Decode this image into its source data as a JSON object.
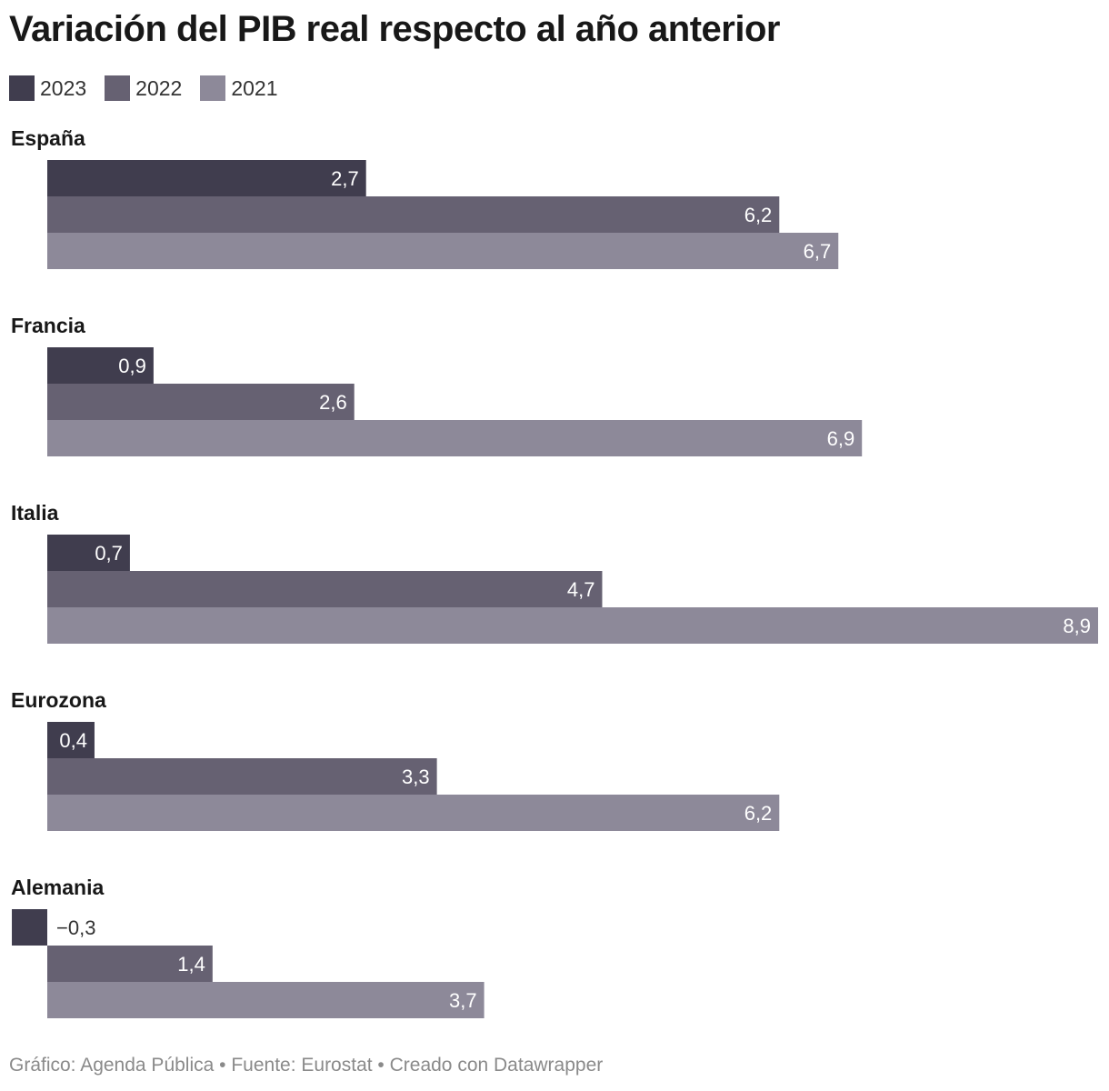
{
  "chart_data": {
    "type": "bar",
    "orientation": "horizontal",
    "title": "Variación del PIB real respecto al año anterior",
    "categories": [
      "España",
      "Francia",
      "Italia",
      "Eurozona",
      "Alemania"
    ],
    "category_display": [
      "España",
      "Francia",
      "Italia",
      " Eurozona",
      "Alemania"
    ],
    "series": [
      {
        "name": "2023",
        "color": "#403d4e",
        "values": [
          2.7,
          0.9,
          0.7,
          0.4,
          -0.3
        ],
        "labels": [
          "2,7",
          "0,9",
          "0,7",
          "0,4",
          "−0,3"
        ]
      },
      {
        "name": "2022",
        "color": "#666172",
        "values": [
          6.2,
          2.6,
          4.7,
          3.3,
          1.4
        ],
        "labels": [
          "6,2",
          "2,6",
          "4,7",
          "3,3",
          "1,4"
        ]
      },
      {
        "name": "2021",
        "color": "#8d8999",
        "values": [
          6.7,
          6.9,
          8.9,
          6.2,
          3.7
        ],
        "labels": [
          "6,7",
          "6,9",
          "8,9",
          "6,2",
          "3,7"
        ]
      }
    ],
    "xlim": [
      -0.3,
      8.9
    ],
    "grid": false,
    "legend": "top-left"
  },
  "footer": "Gráfico: Agenda Pública • Fuente: Eurostat • Creado con Datawrapper"
}
